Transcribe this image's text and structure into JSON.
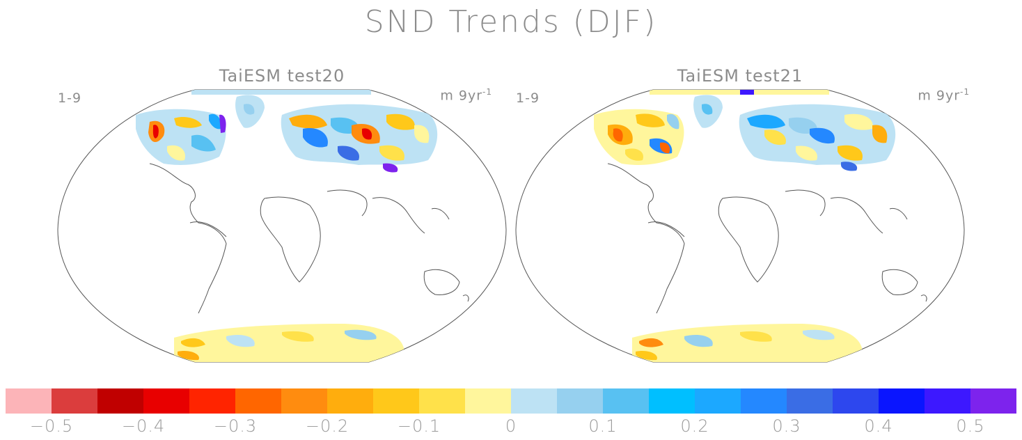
{
  "title": "SND Trends (DJF)",
  "panels": [
    {
      "title": "TaiESM test20",
      "left_label": "1-9",
      "units": "m 9yr",
      "units_exp": "-1"
    },
    {
      "title": "TaiESM test21",
      "left_label": "1-9",
      "units": "m 9yr",
      "units_exp": "-1"
    }
  ],
  "colorbar": {
    "colors": [
      "#fcb4b8",
      "#db3d3d",
      "#c00000",
      "#e80000",
      "#ff2400",
      "#ff6600",
      "#ff8c0f",
      "#ffad0d",
      "#ffc81a",
      "#ffe14a",
      "#fff69c",
      "#bde2f4",
      "#96d0ef",
      "#58c1f2",
      "#00bfff",
      "#1ca8ff",
      "#2488ff",
      "#3a6de5",
      "#2d47ee",
      "#0a15ff",
      "#3d18ff",
      "#7d23ed"
    ],
    "tick_labels": [
      "−0.5",
      "−0.4",
      "−0.3",
      "−0.2",
      "−0.1",
      "0",
      "0.1",
      "0.2",
      "0.3",
      "0.4",
      "0.5"
    ],
    "tick_values": [
      -0.5,
      -0.4,
      -0.3,
      -0.2,
      -0.1,
      0,
      0.1,
      0.2,
      0.3,
      0.4,
      0.5
    ],
    "vmin": -0.55,
    "vmax": 0.55
  }
}
